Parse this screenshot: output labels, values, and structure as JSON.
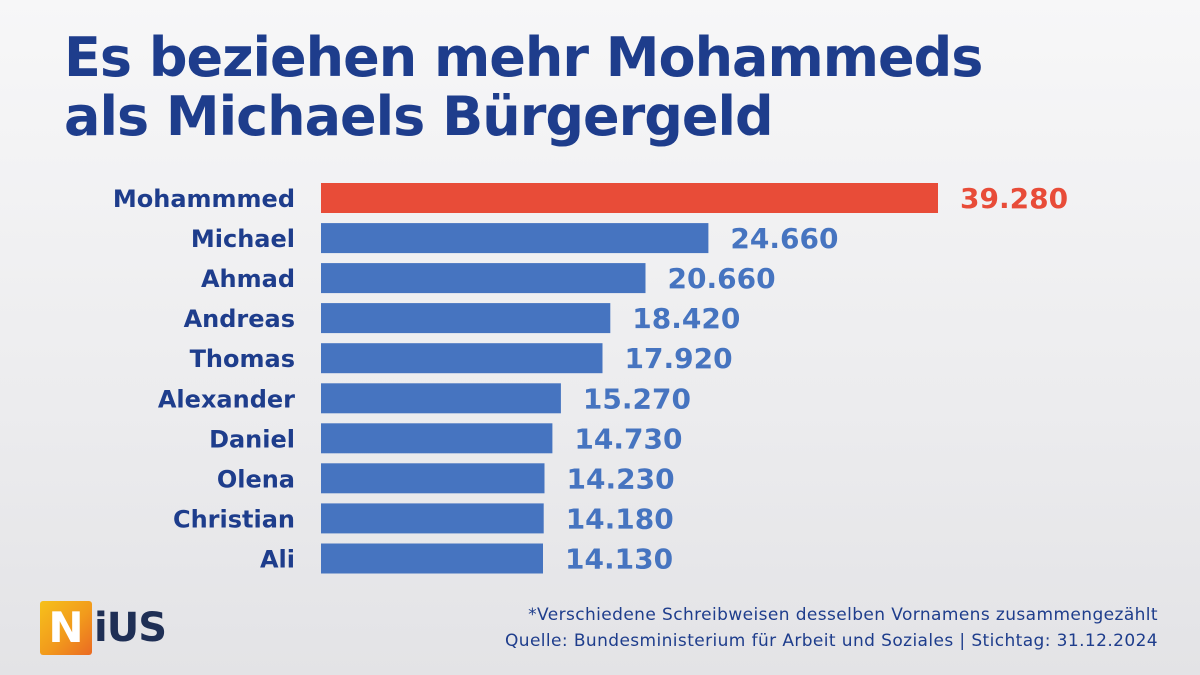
{
  "title": {
    "line1": "Es beziehen mehr Mohammeds",
    "line2": "als Michaels Bürgergeld"
  },
  "chart_data": {
    "type": "bar",
    "orientation": "horizontal",
    "title": "Es beziehen mehr Mohammeds als Michaels Bürgergeld",
    "categories": [
      "Mohammmed",
      "Michael",
      "Ahmad",
      "Andreas",
      "Thomas",
      "Alexander",
      "Daniel",
      "Olena",
      "Christian",
      "Ali"
    ],
    "values": [
      39280,
      24660,
      20660,
      18420,
      17920,
      15270,
      14730,
      14230,
      14180,
      14130
    ],
    "value_labels": [
      "39.280",
      "24.660",
      "20.660",
      "18.420",
      "17.920",
      "15.270",
      "14.730",
      "14.230",
      "14.180",
      "14.130"
    ],
    "highlight_index": 0,
    "colors": {
      "highlight_bar": "#e84c38",
      "highlight_text": "#e84c38",
      "bar": "#4674c0",
      "value_text": "#4674c0",
      "category_text": "#1e3d8c"
    },
    "xlim": [
      0,
      40000
    ],
    "xlabel": "",
    "ylabel": "",
    "grid": false
  },
  "logo": {
    "n": "N",
    "rest": "iUS"
  },
  "footer": {
    "note": "*Verschiedene Schreibweisen desselben Vornamens zusammengezählt",
    "source": "Quelle: Bundesministerium für Arbeit und Soziales | Stichtag: 31.12.2024"
  }
}
